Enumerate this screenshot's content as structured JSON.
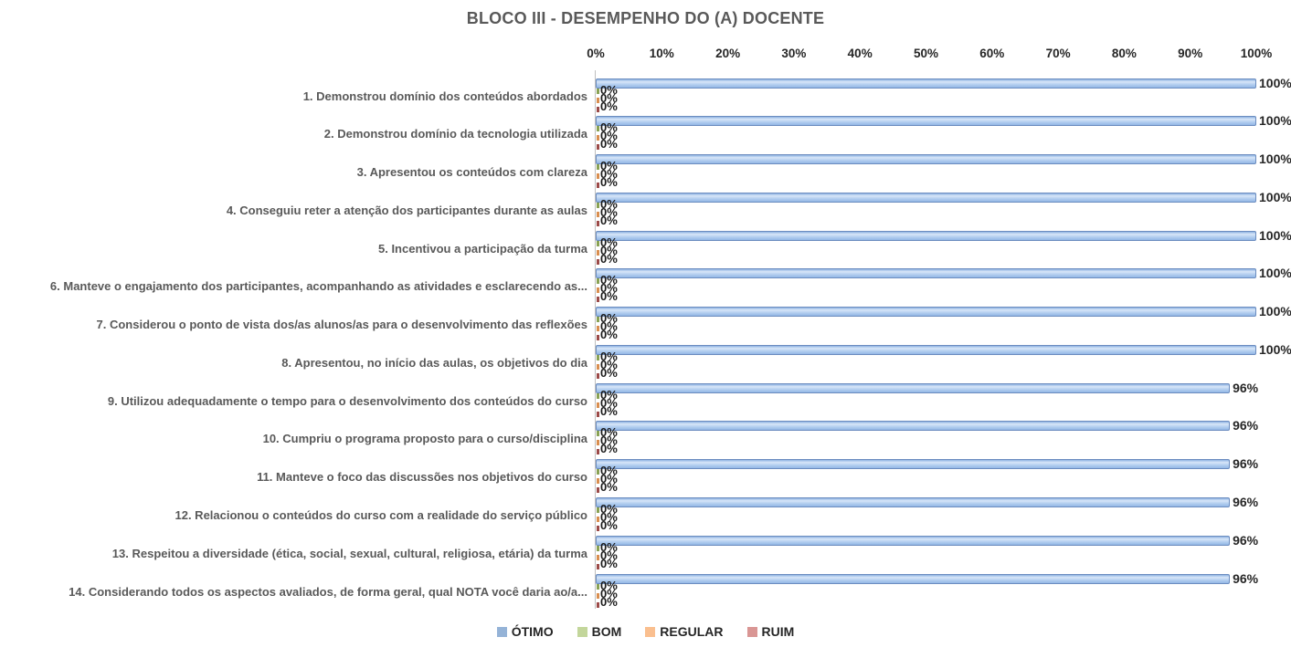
{
  "chart_data": {
    "type": "bar",
    "orientation": "horizontal",
    "title": "BLOCO III - DESEMPENHO DO (A) DOCENTE",
    "xlabel": "",
    "ylabel": "",
    "grid": false,
    "legend_position": "bottom",
    "x_axis": {
      "min": 0,
      "max": 100,
      "tick_labels": [
        "0%",
        "10%",
        "20%",
        "30%",
        "40%",
        "50%",
        "60%",
        "70%",
        "80%",
        "90%",
        "100%"
      ]
    },
    "categories": [
      "1. Demonstrou domínio dos conteúdos abordados",
      "2. Demonstrou domínio da tecnologia utilizada",
      "3. Apresentou os conteúdos com clareza",
      "4. Conseguiu reter a atenção dos participantes durante as aulas",
      "5. Incentivou a participação da turma",
      "6. Manteve o engajamento dos participantes, acompanhando as atividades e esclarecendo as...",
      "7. Considerou o ponto de vista dos/as alunos/as para o desenvolvimento das reflexões",
      "8. Apresentou, no início das aulas, os objetivos do dia",
      "9. Utilizou adequadamente o tempo para o desenvolvimento dos conteúdos do curso",
      "10. Cumpriu o programa proposto para o curso/disciplina",
      "11. Manteve o foco das discussões nos objetivos do curso",
      "12. Relacionou o conteúdos do curso com a realidade do serviço público",
      "13. Respeitou a diversidade (ética, social, sexual, cultural, religiosa, etária) da turma",
      "14. Considerando todos os aspectos avaliados, de forma geral, qual NOTA você daria ao/a..."
    ],
    "series": [
      {
        "name": "ÓTIMO",
        "legend_color": "#95b3d7",
        "values": [
          100,
          100,
          100,
          100,
          100,
          100,
          100,
          100,
          96,
          96,
          96,
          96,
          96,
          96
        ],
        "data_labels": [
          "100%",
          "100%",
          "100%",
          "100%",
          "100%",
          "100%",
          "100%",
          "100%",
          "96%",
          "96%",
          "96%",
          "96%",
          "96%",
          "96%"
        ]
      },
      {
        "name": "BOM",
        "legend_color": "#c3d69b",
        "stub_color": "#89a254",
        "values": [
          0,
          0,
          0,
          0,
          0,
          0,
          0,
          0,
          0,
          0,
          0,
          0,
          0,
          0
        ],
        "data_labels": [
          "0%",
          "0%",
          "0%",
          "0%",
          "0%",
          "0%",
          "0%",
          "0%",
          "0%",
          "0%",
          "0%",
          "0%",
          "0%",
          "0%"
        ]
      },
      {
        "name": "REGULAR",
        "legend_color": "#fabf8f",
        "stub_color": "#d98e4f",
        "values": [
          0,
          0,
          0,
          0,
          0,
          0,
          0,
          0,
          0,
          0,
          0,
          0,
          0,
          0
        ],
        "data_labels": [
          "0%",
          "0%",
          "0%",
          "0%",
          "0%",
          "0%",
          "0%",
          "0%",
          "0%",
          "0%",
          "0%",
          "0%",
          "0%",
          "0%"
        ]
      },
      {
        "name": "RUIM",
        "legend_color": "#d99694",
        "stub_color": "#9c4a48",
        "values": [
          0,
          0,
          0,
          0,
          0,
          0,
          0,
          0,
          0,
          0,
          0,
          0,
          0,
          0
        ],
        "data_labels": [
          "0%",
          "0%",
          "0%",
          "0%",
          "0%",
          "0%",
          "0%",
          "0%",
          "0%",
          "0%",
          "0%",
          "0%",
          "0%",
          "0%"
        ]
      }
    ]
  },
  "colors": {
    "title_text": "#595959",
    "category_text": "#595959",
    "axis_text": "#262626",
    "value_text": "#262626",
    "axis_line": "#bfbfbf",
    "bar_border": "#6b8cbf",
    "bar_fill": "#a9c8ec",
    "background": "#ffffff"
  }
}
